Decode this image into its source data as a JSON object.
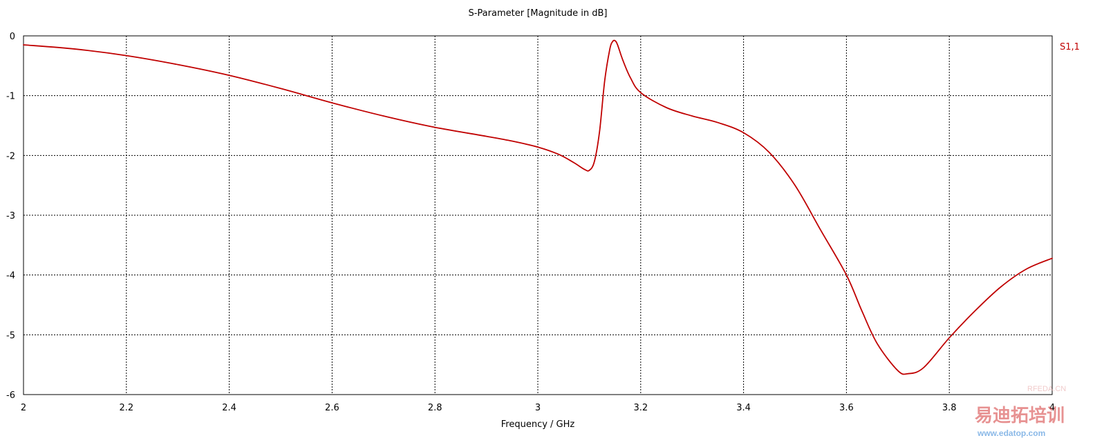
{
  "chart_data": {
    "type": "line",
    "title": "S-Parameter [Magnitude in dB]",
    "xlabel": "Frequency / GHz",
    "ylabel": "",
    "xlim": [
      2,
      4
    ],
    "ylim": [
      -6,
      0
    ],
    "x_ticks": [
      2,
      2.2,
      2.4,
      2.6,
      2.8,
      3,
      3.2,
      3.4,
      3.6,
      3.8,
      4
    ],
    "x_tick_labels": [
      "2",
      "2.2",
      "2.4",
      "2.6",
      "2.8",
      "3",
      "3.2",
      "3.4",
      "3.6",
      "3.8",
      "4"
    ],
    "y_ticks": [
      0,
      -1,
      -2,
      -3,
      -4,
      -5,
      -6
    ],
    "y_tick_labels": [
      "0",
      "-1",
      "-2",
      "-3",
      "-4",
      "-5",
      "-6"
    ],
    "grid": true,
    "legend_position": "top-right",
    "series": [
      {
        "name": "S1,1",
        "color": "#c00000",
        "x": [
          2.0,
          2.1,
          2.2,
          2.3,
          2.4,
          2.5,
          2.6,
          2.7,
          2.8,
          2.9,
          2.95,
          3.0,
          3.04,
          3.07,
          3.09,
          3.1,
          3.11,
          3.12,
          3.13,
          3.14,
          3.145,
          3.15,
          3.155,
          3.165,
          3.18,
          3.2,
          3.25,
          3.3,
          3.35,
          3.4,
          3.45,
          3.5,
          3.55,
          3.6,
          3.63,
          3.66,
          3.7,
          3.72,
          3.75,
          3.8,
          3.85,
          3.9,
          3.95,
          4.0
        ],
        "y": [
          -0.15,
          -0.22,
          -0.33,
          -0.48,
          -0.66,
          -0.88,
          -1.12,
          -1.34,
          -1.53,
          -1.68,
          -1.76,
          -1.86,
          -1.98,
          -2.12,
          -2.23,
          -2.25,
          -2.1,
          -1.6,
          -0.75,
          -0.22,
          -0.1,
          -0.08,
          -0.15,
          -0.4,
          -0.7,
          -0.95,
          -1.2,
          -1.34,
          -1.45,
          -1.62,
          -1.95,
          -2.5,
          -3.25,
          -4.0,
          -4.6,
          -5.15,
          -5.6,
          -5.65,
          -5.55,
          -5.05,
          -4.6,
          -4.2,
          -3.9,
          -3.72
        ]
      }
    ]
  },
  "watermark": {
    "brand_text": "RFEDA.CN",
    "logo_text": "易迪拓培训",
    "site_text": "www.edatop.com"
  }
}
